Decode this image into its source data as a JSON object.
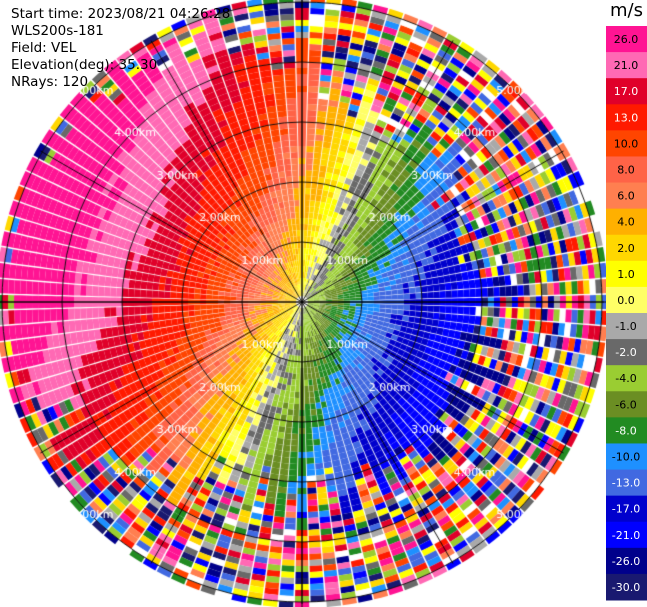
{
  "info": {
    "start_time": "Start time: 2023/08/21 04:26:28",
    "instrument": "WLS200s-181",
    "field": "Field: VEL",
    "elevation": "Elevation(deg): 35.30",
    "nrays": "NRays: 120"
  },
  "range_labels": [
    "1.00km",
    "2.00km",
    "3.00km",
    "4.00km",
    "5.00km"
  ],
  "colorbar": {
    "unit": "m/s",
    "ticks": [
      "26.0",
      "21.0",
      "17.0",
      "13.0",
      "10.0",
      "8.0",
      "6.0",
      "4.0",
      "2.0",
      "1.0",
      "0.0",
      "-1.0",
      "-2.0",
      "-4.0",
      "-6.0",
      "-8.0",
      "-10.0",
      "-13.0",
      "-17.0",
      "-21.0",
      "-26.0",
      "-30.0"
    ],
    "colors": [
      "#ff1493",
      "#ff69b4",
      "#e0002a",
      "#ff1a00",
      "#ff4500",
      "#ff6347",
      "#ff7f50",
      "#ffb000",
      "#ffd700",
      "#ffff00",
      "#ffff66",
      "#a9a9a9",
      "#696969",
      "#9acd32",
      "#6b8e23",
      "#228b22",
      "#1e90ff",
      "#4169e1",
      "#0000cd",
      "#0000ff",
      "#00008b",
      "#191970"
    ]
  }
}
